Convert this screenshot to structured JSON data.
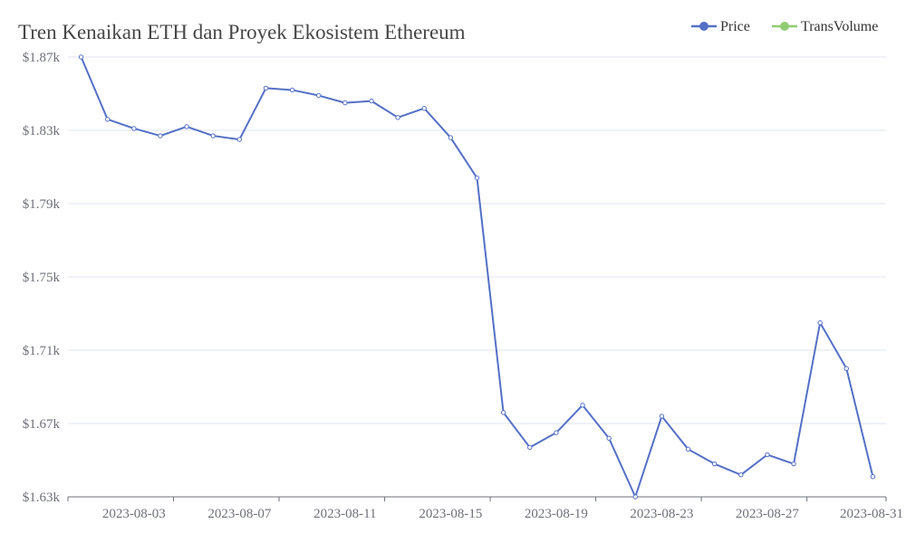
{
  "chart_data": {
    "type": "line",
    "title": "Tren Kenaikan ETH dan Proyek Ekosistem Ethereum",
    "x": [
      "2023-08-01",
      "2023-08-02",
      "2023-08-03",
      "2023-08-04",
      "2023-08-05",
      "2023-08-06",
      "2023-08-07",
      "2023-08-08",
      "2023-08-09",
      "2023-08-10",
      "2023-08-11",
      "2023-08-12",
      "2023-08-13",
      "2023-08-14",
      "2023-08-15",
      "2023-08-16",
      "2023-08-17",
      "2023-08-18",
      "2023-08-19",
      "2023-08-20",
      "2023-08-21",
      "2023-08-22",
      "2023-08-23",
      "2023-08-24",
      "2023-08-25",
      "2023-08-26",
      "2023-08-27",
      "2023-08-28",
      "2023-08-29",
      "2023-08-30",
      "2023-08-31"
    ],
    "series": [
      {
        "name": "Price",
        "color": "#5470c6",
        "values": [
          1870,
          1836,
          1831,
          1827,
          1832,
          1827,
          1825,
          1853,
          1852,
          1849,
          1845,
          1846,
          1837,
          1842,
          1826,
          1804,
          1676,
          1657,
          1665,
          1680,
          1662,
          1630,
          1674,
          1656,
          1648,
          1642,
          1653,
          1648,
          1725,
          1700,
          1641
        ]
      }
    ],
    "legend": [
      {
        "name": "Price",
        "color": "#5470c6"
      },
      {
        "name": "TransVolume",
        "color": "#91cc75"
      }
    ],
    "legend_position": "top-right",
    "xticks": [
      "2023-08-03",
      "2023-08-07",
      "2023-08-11",
      "2023-08-15",
      "2023-08-19",
      "2023-08-23",
      "2023-08-27",
      "2023-08-31"
    ],
    "yticks": [
      {
        "value": 1870,
        "label": "$1.87k"
      },
      {
        "value": 1830,
        "label": "$1.83k"
      },
      {
        "value": 1790,
        "label": "$1.79k"
      },
      {
        "value": 1750,
        "label": "$1.75k"
      },
      {
        "value": 1710,
        "label": "$1.71k"
      },
      {
        "value": 1670,
        "label": "$1.67k"
      },
      {
        "value": 1630,
        "label": "$1.63k"
      }
    ],
    "ylim": [
      1630,
      1870
    ],
    "grid": "horizontal"
  }
}
